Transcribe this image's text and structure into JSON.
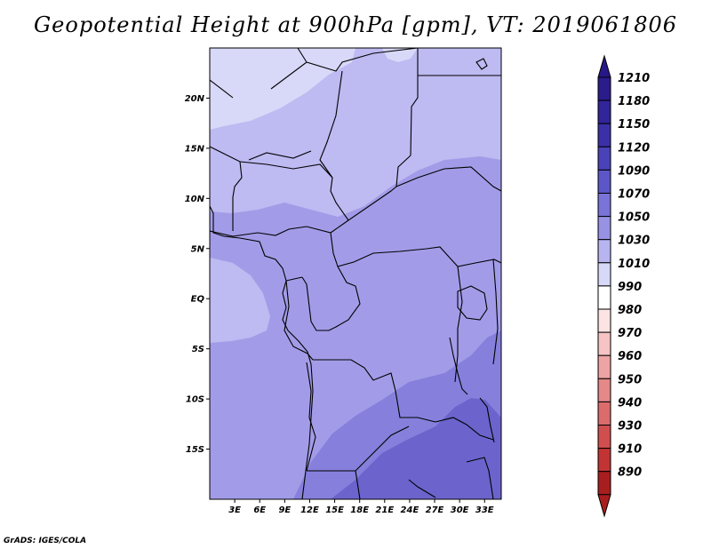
{
  "title": "Geopotential Height at 900hPa [gpm], VT: 2019061806",
  "credit": "GrADS: IGES/COLA",
  "map": {
    "lon_range": [
      0,
      35
    ],
    "lat_range": [
      -20,
      25
    ],
    "lat_ticks": [
      {
        "value": 20,
        "label": "20N"
      },
      {
        "value": 15,
        "label": "15N"
      },
      {
        "value": 10,
        "label": "10N"
      },
      {
        "value": 5,
        "label": "5N"
      },
      {
        "value": 0,
        "label": "EQ"
      },
      {
        "value": -5,
        "label": "5S"
      },
      {
        "value": -10,
        "label": "10S"
      },
      {
        "value": -15,
        "label": "15S"
      }
    ],
    "lon_ticks": [
      {
        "value": 3,
        "label": "3E"
      },
      {
        "value": 6,
        "label": "6E"
      },
      {
        "value": 9,
        "label": "9E"
      },
      {
        "value": 12,
        "label": "12E"
      },
      {
        "value": 15,
        "label": "15E"
      },
      {
        "value": 18,
        "label": "18E"
      },
      {
        "value": 21,
        "label": "21E"
      },
      {
        "value": 24,
        "label": "24E"
      },
      {
        "value": 27,
        "label": "27E"
      },
      {
        "value": 30,
        "label": "30E"
      },
      {
        "value": 33,
        "label": "33E"
      }
    ]
  },
  "colorbar": {
    "levels": [
      {
        "label": "1210",
        "color": "#2b1c8c"
      },
      {
        "label": "1180",
        "color": "#32249a"
      },
      {
        "label": "1150",
        "color": "#3b30a8"
      },
      {
        "label": "1120",
        "color": "#4a42b8"
      },
      {
        "label": "1090",
        "color": "#5c56c8"
      },
      {
        "label": "1070",
        "color": "#7a74d8"
      },
      {
        "label": "1050",
        "color": "#9892e4"
      },
      {
        "label": "1030",
        "color": "#b8b4f0"
      },
      {
        "label": "1010",
        "color": "#d8d8f8"
      },
      {
        "label": "990",
        "color": "#ffffff"
      },
      {
        "label": "980",
        "color": "#fce4e4"
      },
      {
        "label": "970",
        "color": "#f6c4c4"
      },
      {
        "label": "960",
        "color": "#eea4a4"
      },
      {
        "label": "950",
        "color": "#e48888"
      },
      {
        "label": "940",
        "color": "#dc6c6c"
      },
      {
        "label": "930",
        "color": "#d04e4e"
      },
      {
        "label": "910",
        "color": "#c23434"
      },
      {
        "label": "890",
        "color": "#a81e1e"
      }
    ],
    "top_cap_color": "#261888",
    "bottom_cap_color": "#a81e1e"
  },
  "field_colors": {
    "c1010": "#d8d8f8",
    "c1030": "#bebaf2",
    "c1050": "#a29ce8",
    "c1070": "#8680dc",
    "c1090": "#6c64cc"
  }
}
